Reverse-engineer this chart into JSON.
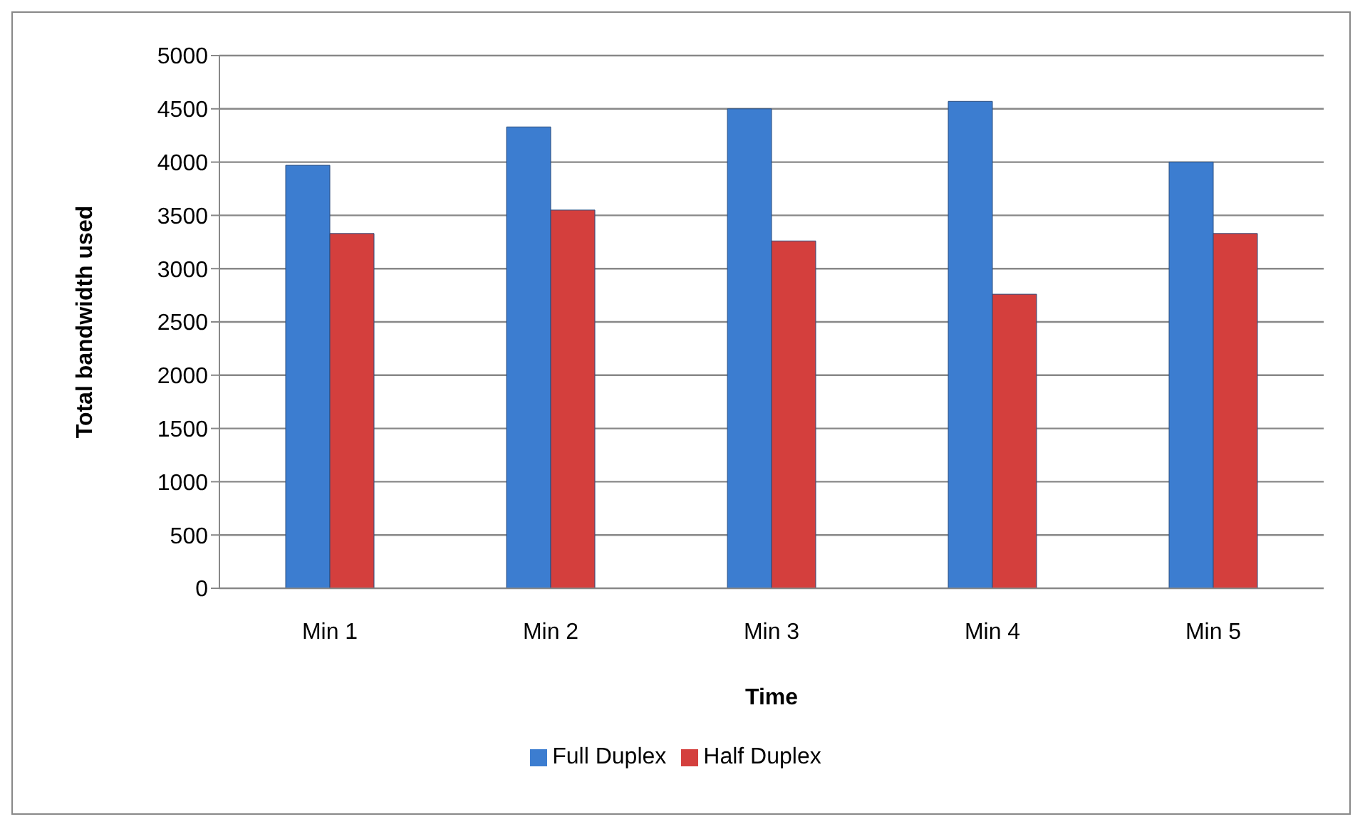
{
  "chart_data": {
    "type": "bar",
    "xlabel": "Time",
    "ylabel": "Total bandwidth used",
    "categories": [
      "Min 1",
      "Min 2",
      "Min 3",
      "Min 4",
      "Min 5"
    ],
    "series": [
      {
        "name": "Full Duplex",
        "color": "#3c7dd0",
        "values": [
          3970,
          4330,
          4500,
          4570,
          4000
        ]
      },
      {
        "name": "Half Duplex",
        "color": "#d43f3d",
        "values": [
          3330,
          3550,
          3260,
          2760,
          3330
        ]
      }
    ],
    "ylim": [
      0,
      5000
    ],
    "yticks": [
      0,
      500,
      1000,
      1500,
      2000,
      2500,
      3000,
      3500,
      4000,
      4500,
      5000
    ],
    "grid": "y",
    "legend": "bottom"
  }
}
